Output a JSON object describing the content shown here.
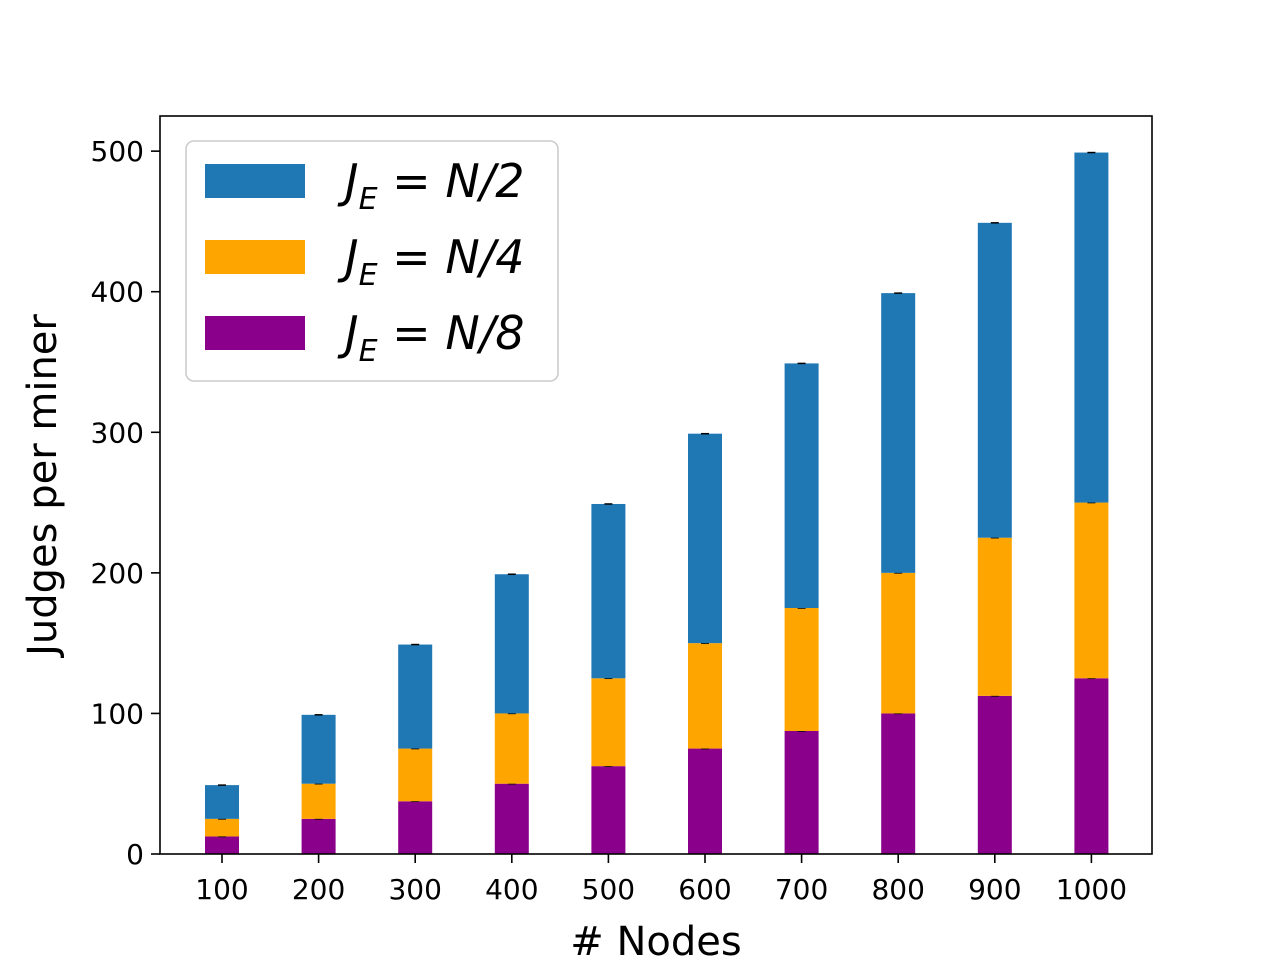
{
  "chart_data": {
    "type": "bar",
    "stacked": true,
    "categories": [
      "100",
      "200",
      "300",
      "400",
      "500",
      "600",
      "700",
      "800",
      "900",
      "1000"
    ],
    "series": [
      {
        "name": "J_E = N/8",
        "color": "#8b008b",
        "values": [
          12.5,
          25,
          37.5,
          50,
          62.5,
          75,
          87.5,
          100,
          112.5,
          125
        ]
      },
      {
        "name": "J_E = N/4",
        "color": "#ffa500",
        "values": [
          12.5,
          25,
          37.5,
          50,
          62.5,
          75,
          87.5,
          100,
          112.5,
          125
        ]
      },
      {
        "name": "J_E = N/2",
        "color": "#1f77b4",
        "values": [
          24,
          49,
          74,
          99,
          124,
          149,
          174,
          199,
          224,
          249
        ]
      }
    ],
    "legend": [
      {
        "prefix": "J",
        "sub": "E",
        "rest": " = N/2",
        "color": "#1f77b4"
      },
      {
        "prefix": "J",
        "sub": "E",
        "rest": " = N/4",
        "color": "#ffa500"
      },
      {
        "prefix": "J",
        "sub": "E",
        "rest": " = N/8",
        "color": "#8b008b"
      }
    ],
    "xlabel": "# Nodes",
    "ylabel": "Judges per miner",
    "ylim": [
      0,
      525
    ],
    "yticks": [
      "0",
      "100",
      "200",
      "300",
      "400",
      "500"
    ],
    "legend_position": "top-left",
    "grid": false
  }
}
